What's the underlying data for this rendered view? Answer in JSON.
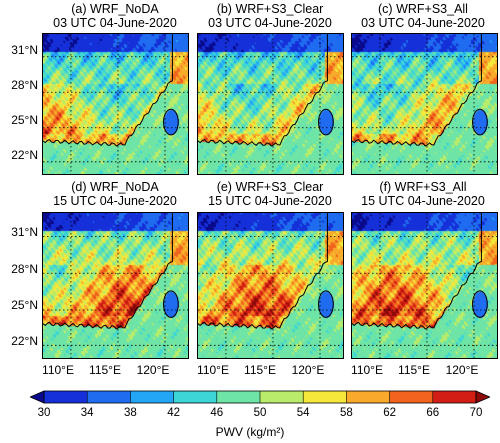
{
  "panels": [
    {
      "label": "(a) WRF_NoDA",
      "time": "03 UTC 04-June-2020"
    },
    {
      "label": "(b) WRF+S3_Clear",
      "time": "03 UTC 04-June-2020"
    },
    {
      "label": "(c) WRF+S3_All",
      "time": "03 UTC 04-June-2020"
    },
    {
      "label": "(d) WRF_NoDA",
      "time": "15 UTC 04-June-2020"
    },
    {
      "label": "(e) WRF+S3_Clear",
      "time": "15 UTC 04-June-2020"
    },
    {
      "label": "(f) WRF+S3_All",
      "time": "15 UTC 04-June-2020"
    }
  ],
  "lat_ticks": [
    "31°N",
    "28°N",
    "25°N",
    "22°N"
  ],
  "lon_ticks": [
    "110°E",
    "115°E",
    "120°E"
  ],
  "colorbar": {
    "ticks": [
      "30",
      "34",
      "38",
      "42",
      "46",
      "50",
      "54",
      "58",
      "62",
      "66",
      "70"
    ],
    "colors": [
      "#0a0a8c",
      "#1530d8",
      "#1f6cf0",
      "#24a6f6",
      "#3cd6d6",
      "#6ee4a6",
      "#b8ec6a",
      "#f5e83a",
      "#f8aa2a",
      "#f0641e",
      "#d21e14",
      "#8c0a0a"
    ],
    "unit": "PWV (kg/m²)"
  }
}
